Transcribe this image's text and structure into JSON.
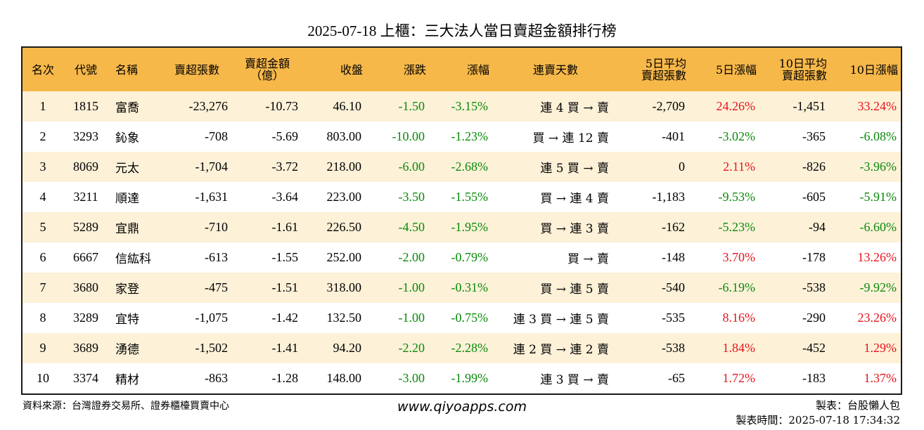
{
  "title": "2025-07-18 上櫃：三大法人當日賣超金額排行榜",
  "headers": [
    {
      "l1": "名次",
      "l2": ""
    },
    {
      "l1": "代號",
      "l2": ""
    },
    {
      "l1": "名稱",
      "l2": ""
    },
    {
      "l1": "賣超張數",
      "l2": ""
    },
    {
      "l1": "賣超金額",
      "l2": "（億）"
    },
    {
      "l1": "收盤",
      "l2": ""
    },
    {
      "l1": "漲跌",
      "l2": ""
    },
    {
      "l1": "漲幅",
      "l2": ""
    },
    {
      "l1": "連賣天數",
      "l2": ""
    },
    {
      "l1": "5日平均",
      "l2": "賣超張數"
    },
    {
      "l1": "5日漲幅",
      "l2": ""
    },
    {
      "l1": "10日平均",
      "l2": "賣超張數"
    },
    {
      "l1": "10日漲幅",
      "l2": ""
    }
  ],
  "rows": [
    {
      "rank": "1",
      "code": "1815",
      "name": "富喬",
      "shares": "-23,276",
      "amount": "-10.73",
      "close": "46.10",
      "change": "-1.50",
      "pct": "-3.15%",
      "streak": "連 4 買 → 賣",
      "avg5": "-2,709",
      "pct5": "24.26%",
      "avg10": "-1,451",
      "pct10": "33.24%"
    },
    {
      "rank": "2",
      "code": "3293",
      "name": "鈊象",
      "shares": "-708",
      "amount": "-5.69",
      "close": "803.00",
      "change": "-10.00",
      "pct": "-1.23%",
      "streak": "買 → 連 12 賣",
      "avg5": "-401",
      "pct5": "-3.02%",
      "avg10": "-365",
      "pct10": "-6.08%"
    },
    {
      "rank": "3",
      "code": "8069",
      "name": "元太",
      "shares": "-1,704",
      "amount": "-3.72",
      "close": "218.00",
      "change": "-6.00",
      "pct": "-2.68%",
      "streak": "連 5 買 → 賣",
      "avg5": "0",
      "pct5": "2.11%",
      "avg10": "-826",
      "pct10": "-3.96%"
    },
    {
      "rank": "4",
      "code": "3211",
      "name": "順達",
      "shares": "-1,631",
      "amount": "-3.64",
      "close": "223.00",
      "change": "-3.50",
      "pct": "-1.55%",
      "streak": "買 → 連 4 賣",
      "avg5": "-1,183",
      "pct5": "-9.53%",
      "avg10": "-605",
      "pct10": "-5.91%"
    },
    {
      "rank": "5",
      "code": "5289",
      "name": "宜鼎",
      "shares": "-710",
      "amount": "-1.61",
      "close": "226.50",
      "change": "-4.50",
      "pct": "-1.95%",
      "streak": "買 → 連 3 賣",
      "avg5": "-162",
      "pct5": "-5.23%",
      "avg10": "-94",
      "pct10": "-6.60%"
    },
    {
      "rank": "6",
      "code": "6667",
      "name": "信紘科",
      "shares": "-613",
      "amount": "-1.55",
      "close": "252.00",
      "change": "-2.00",
      "pct": "-0.79%",
      "streak": "買 → 賣",
      "avg5": "-148",
      "pct5": "3.70%",
      "avg10": "-178",
      "pct10": "13.26%"
    },
    {
      "rank": "7",
      "code": "3680",
      "name": "家登",
      "shares": "-475",
      "amount": "-1.51",
      "close": "318.00",
      "change": "-1.00",
      "pct": "-0.31%",
      "streak": "買 → 連 5 賣",
      "avg5": "-540",
      "pct5": "-6.19%",
      "avg10": "-538",
      "pct10": "-9.92%"
    },
    {
      "rank": "8",
      "code": "3289",
      "name": "宜特",
      "shares": "-1,075",
      "amount": "-1.42",
      "close": "132.50",
      "change": "-1.00",
      "pct": "-0.75%",
      "streak": "連 3 買 → 連 5 賣",
      "avg5": "-535",
      "pct5": "8.16%",
      "avg10": "-290",
      "pct10": "23.26%"
    },
    {
      "rank": "9",
      "code": "3689",
      "name": "湧德",
      "shares": "-1,502",
      "amount": "-1.41",
      "close": "94.20",
      "change": "-2.20",
      "pct": "-2.28%",
      "streak": "連 2 買 → 連 2 賣",
      "avg5": "-538",
      "pct5": "1.84%",
      "avg10": "-452",
      "pct10": "1.29%"
    },
    {
      "rank": "10",
      "code": "3374",
      "name": "精材",
      "shares": "-863",
      "amount": "-1.28",
      "close": "148.00",
      "change": "-3.00",
      "pct": "-1.99%",
      "streak": "連 3 買 → 賣",
      "avg5": "-65",
      "pct5": "1.72%",
      "avg10": "-183",
      "pct10": "1.37%"
    }
  ],
  "colors": {
    "header_bg": "#f7b84a",
    "odd_row": "#fdf1d8",
    "up": "#e8141c",
    "down": "#0a8a0a"
  },
  "footer": {
    "source": "資料來源：台灣證券交易所、證券櫃檯買賣中心",
    "website": "www.qiyoapps.com",
    "maker": "製表：台股懶人包",
    "time": "製表時間：2025-07-18 17:34:32"
  }
}
